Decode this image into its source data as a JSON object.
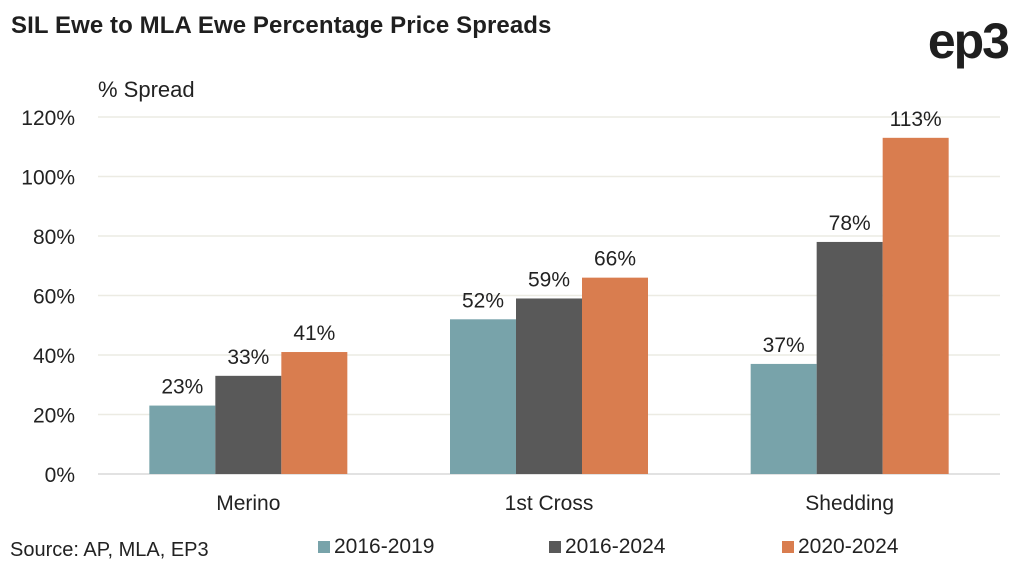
{
  "header": {
    "title": "SIL Ewe to MLA Ewe Percentage Price Spreads",
    "logo": "ep3"
  },
  "footer": {
    "source": "Source: AP, MLA, EP3"
  },
  "chart_data": {
    "type": "bar",
    "title": "SIL Ewe to MLA Ewe Percentage Price Spreads",
    "xlabel": "",
    "ylabel": "% Spread",
    "ylim": [
      0,
      120
    ],
    "yticks": [
      0,
      20,
      40,
      60,
      80,
      100,
      120
    ],
    "ytick_labels": [
      "0%",
      "20%",
      "40%",
      "60%",
      "80%",
      "100%",
      "120%"
    ],
    "grid": true,
    "legend_position": "bottom",
    "categories": [
      "Merino",
      "1st Cross",
      "Shedding"
    ],
    "series": [
      {
        "name": "2016-2019",
        "color": "#78a3aa",
        "values": [
          23,
          52,
          37
        ],
        "labels": [
          "23%",
          "52%",
          "37%"
        ]
      },
      {
        "name": "2016-2024",
        "color": "#595959",
        "values": [
          33,
          59,
          78
        ],
        "labels": [
          "33%",
          "59%",
          "78%"
        ]
      },
      {
        "name": "2020-2024",
        "color": "#d97d4f",
        "values": [
          41,
          66,
          113
        ],
        "labels": [
          "41%",
          "66%",
          "113%"
        ]
      }
    ]
  }
}
